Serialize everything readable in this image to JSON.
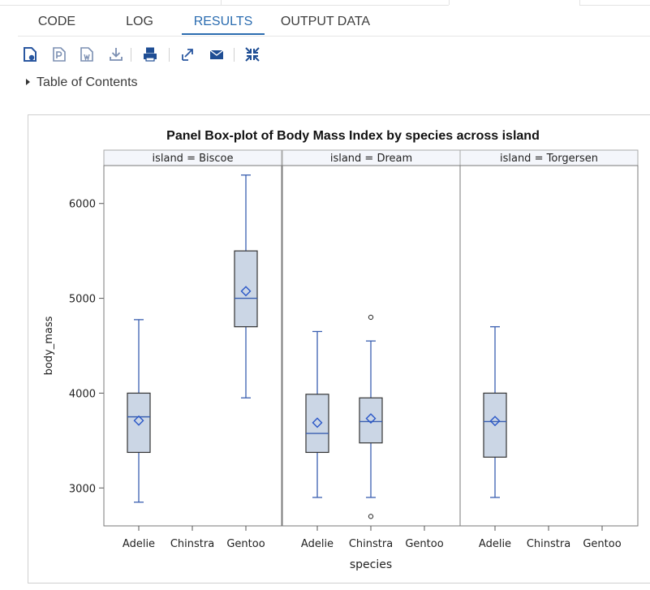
{
  "tabs": [
    {
      "label": "CODE",
      "active": false
    },
    {
      "label": "LOG",
      "active": false
    },
    {
      "label": "RESULTS",
      "active": true
    },
    {
      "label": "OUTPUT DATA",
      "active": false
    }
  ],
  "toolbar": {
    "icons": [
      "open-html-icon",
      "open-pdf-icon",
      "open-word-icon",
      "download-icon",
      "print-icon",
      "new-window-icon",
      "email-icon",
      "collapse-icon"
    ]
  },
  "toc": {
    "label": "Table of Contents"
  },
  "colors": {
    "accent": "#2b6cb0",
    "box_fill": "#cbd6e5",
    "whisker": "#3a5fb0",
    "mean": "#2a57c8"
  },
  "chart_data": {
    "type": "box",
    "title": "Panel Box-plot of Body Mass Index by species across island",
    "xlabel": "species",
    "ylabel": "body_mass",
    "ylim": [
      2600,
      6400
    ],
    "yticks": [
      3000,
      4000,
      5000,
      6000
    ],
    "categories": [
      "Adelie",
      "Chinstra",
      "Gentoo"
    ],
    "panels": [
      {
        "label": "island = Biscoe",
        "boxes": [
          {
            "category": "Adelie",
            "min": 2850,
            "q1": 3375,
            "median": 3750,
            "q3": 4000,
            "max": 4775,
            "mean": 3710,
            "outliers": []
          },
          {
            "category": "Chinstra",
            "min": null
          },
          {
            "category": "Gentoo",
            "min": 3950,
            "q1": 4700,
            "median": 5000,
            "q3": 5500,
            "max": 6300,
            "mean": 5076,
            "outliers": []
          }
        ]
      },
      {
        "label": "island = Dream",
        "boxes": [
          {
            "category": "Adelie",
            "min": 2900,
            "q1": 3375,
            "median": 3575,
            "q3": 3988,
            "max": 4650,
            "mean": 3688,
            "outliers": []
          },
          {
            "category": "Chinstra",
            "min": 2900,
            "q1": 3475,
            "median": 3700,
            "q3": 3950,
            "max": 4550,
            "mean": 3733,
            "outliers": [
              4800,
              2700
            ]
          },
          {
            "category": "Gentoo",
            "min": null
          }
        ]
      },
      {
        "label": "island = Torgersen",
        "boxes": [
          {
            "category": "Adelie",
            "min": 2900,
            "q1": 3325,
            "median": 3700,
            "q3": 4000,
            "max": 4700,
            "mean": 3706,
            "outliers": []
          },
          {
            "category": "Chinstra",
            "min": null
          },
          {
            "category": "Gentoo",
            "min": null
          }
        ]
      }
    ]
  }
}
